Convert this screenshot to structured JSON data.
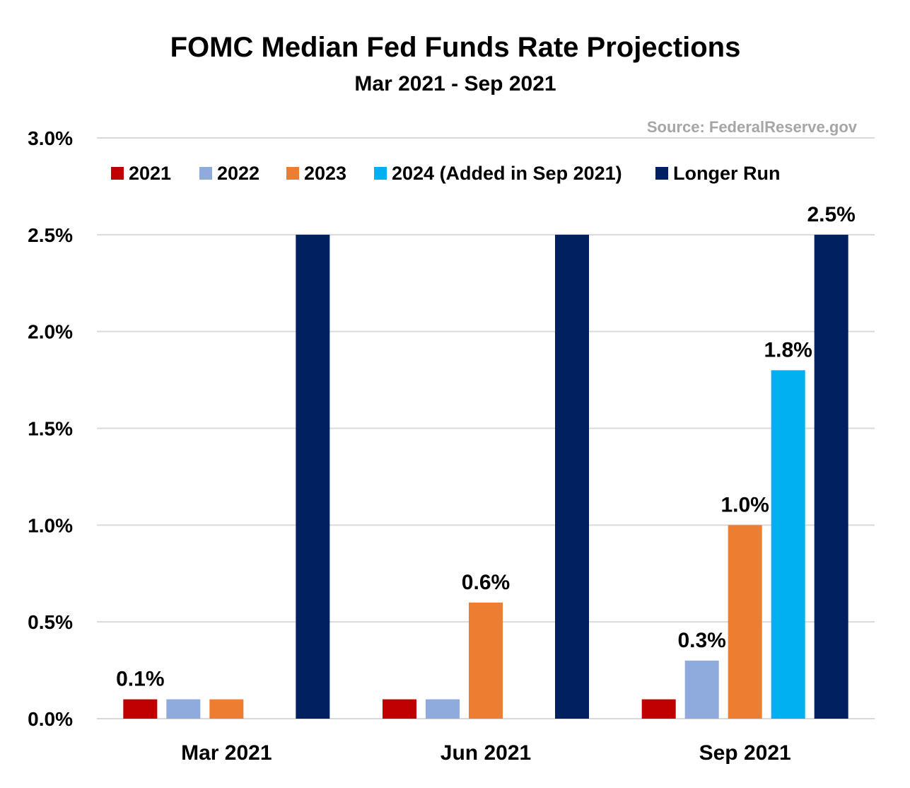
{
  "chart_data": {
    "type": "bar",
    "title": "FOMC Median Fed Funds Rate Projections",
    "subtitle": "Mar 2021 - Sep 2021",
    "source": "Source: FederalReserve.gov",
    "categories": [
      "Mar 2021",
      "Jun 2021",
      "Sep 2021"
    ],
    "series": [
      {
        "name": "2021",
        "color": "#c00000",
        "values": [
          0.1,
          0.1,
          0.1
        ]
      },
      {
        "name": "2022",
        "color": "#8faadc",
        "values": [
          0.1,
          0.1,
          0.3
        ]
      },
      {
        "name": "2023",
        "color": "#ed7d31",
        "values": [
          0.1,
          0.6,
          1.0
        ]
      },
      {
        "name": "2024 (Added in Sep 2021)",
        "color": "#00b0f0",
        "values": [
          null,
          null,
          1.8
        ]
      },
      {
        "name": "Longer Run",
        "color": "#002060",
        "values": [
          2.5,
          2.5,
          2.5
        ]
      }
    ],
    "data_labels": [
      {
        "category": "Mar 2021",
        "series": "2021",
        "text": "0.1%"
      },
      {
        "category": "Jun 2021",
        "series": "2023",
        "text": "0.6%"
      },
      {
        "category": "Sep 2021",
        "series": "2022",
        "text": "0.3%"
      },
      {
        "category": "Sep 2021",
        "series": "2023",
        "text": "1.0%"
      },
      {
        "category": "Sep 2021",
        "series": "2024 (Added in Sep 2021)",
        "text": "1.8%"
      },
      {
        "category": "Sep 2021",
        "series": "Longer Run",
        "text": "2.5%"
      }
    ],
    "yticks": [
      "0.0%",
      "0.5%",
      "1.0%",
      "1.5%",
      "2.0%",
      "2.5%",
      "3.0%"
    ],
    "ylim": [
      0,
      3.0
    ],
    "grid": true,
    "legend": "top"
  }
}
